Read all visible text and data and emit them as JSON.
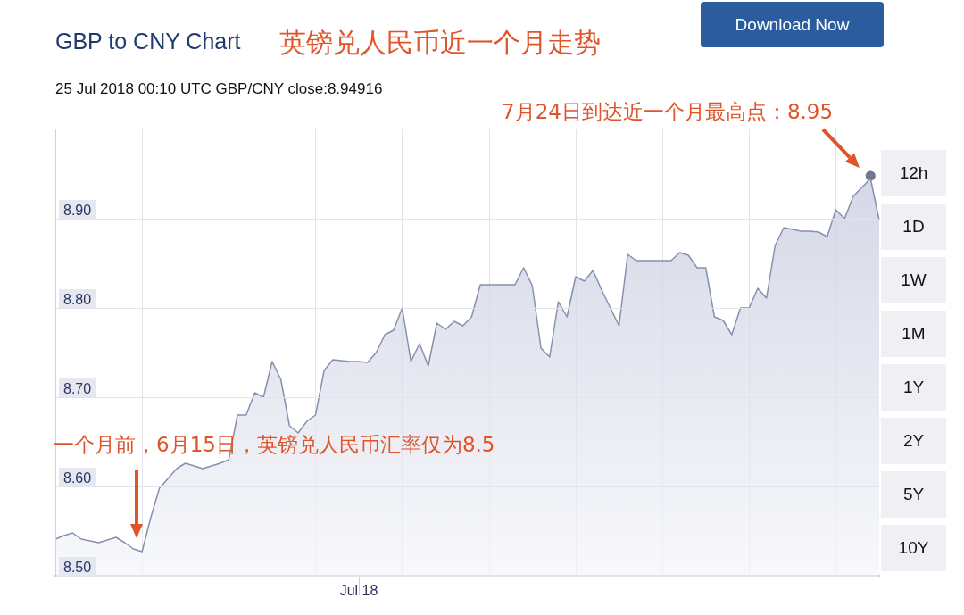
{
  "chart_data": {
    "type": "area",
    "title": "GBP to CNY Chart",
    "subtitle": "25 Jul 2018 00:10 UTC   GBP/CNY close:8.94916",
    "annotations": [
      "英镑兑人民币近一个月走势",
      "7月24日到达近一个月最高点：8.95",
      "一个月前，6月15日，英镑兑人民币汇率仅为8.5",
      "Download Now",
      "12h",
      "1D",
      "1W",
      "1M",
      "1Y",
      "2Y",
      "5Y",
      "10Y"
    ],
    "categories": [
      null,
      null,
      null,
      null,
      null,
      null,
      null,
      null,
      null,
      null,
      null,
      null,
      null,
      null,
      null,
      null,
      null,
      null,
      null,
      null,
      null,
      null,
      null,
      null,
      null,
      null,
      null,
      null,
      null,
      null,
      null,
      null,
      null,
      null,
      null,
      "Jul 18",
      null,
      null,
      null,
      null,
      null,
      null,
      null,
      null,
      null,
      null,
      null,
      null,
      null,
      null,
      null,
      null,
      null,
      null,
      null,
      null,
      null,
      null,
      null,
      null,
      null,
      null,
      null,
      null,
      null,
      null,
      null,
      null,
      null,
      null,
      null,
      null,
      null,
      null,
      null,
      null,
      null,
      null,
      null,
      null,
      null,
      null,
      null,
      null,
      null,
      null,
      null,
      null,
      null,
      null,
      null,
      null,
      null,
      null,
      null,
      null
    ],
    "series": [
      {
        "color": "#8890b0",
        "values": [
          8.541,
          8.545,
          8.548,
          8.541,
          8.539,
          8.537,
          8.54,
          8.543,
          8.537,
          8.53,
          8.527,
          8.565,
          8.598,
          8.609,
          8.62,
          8.626,
          8.623,
          8.62,
          8.623,
          8.626,
          8.63,
          8.68,
          8.68,
          8.705,
          8.7,
          8.74,
          8.72,
          8.668,
          8.66,
          8.673,
          8.68,
          8.73,
          8.742,
          8.741,
          8.74,
          8.74,
          8.739,
          8.75,
          8.77,
          8.775,
          8.8,
          8.74,
          8.76,
          8.735,
          8.783,
          8.776,
          8.785,
          8.78,
          8.79,
          8.826,
          8.826,
          8.826,
          8.826,
          8.826,
          8.845,
          8.825,
          8.755,
          8.745,
          8.807,
          8.79,
          8.835,
          8.83,
          8.842,
          8.82,
          8.8,
          8.78,
          8.86,
          8.853,
          8.853,
          8.853,
          8.853,
          8.853,
          8.862,
          8.859,
          8.845,
          8.845,
          8.79,
          8.786,
          8.77,
          8.8,
          8.8,
          8.822,
          8.811,
          8.87,
          8.89,
          8.888,
          8.886,
          8.886,
          8.885,
          8.88,
          8.91,
          8.9,
          8.925,
          8.935,
          8.945,
          8.898
        ]
      },
      {
        "type": "scatter",
        "color": "#4a5578",
        "values": [
          null,
          null,
          null,
          null,
          null,
          null,
          null,
          null,
          null,
          null,
          null,
          null,
          null,
          null,
          null,
          null,
          null,
          null,
          null,
          null,
          null,
          null,
          null,
          null,
          null,
          null,
          null,
          null,
          null,
          null,
          null,
          null,
          null,
          null,
          null,
          null,
          null,
          null,
          null,
          null,
          null,
          null,
          null,
          null,
          null,
          null,
          null,
          null,
          null,
          null,
          null,
          null,
          null,
          null,
          null,
          null,
          null,
          null,
          null,
          null,
          null,
          null,
          null,
          null,
          null,
          null,
          null,
          null,
          null,
          null,
          null,
          null,
          null,
          null,
          null,
          null,
          null,
          null,
          null,
          null,
          null,
          null,
          null,
          null,
          null,
          null,
          null,
          null,
          null,
          null,
          null,
          null,
          null,
          null,
          8.948,
          null
        ]
      }
    ],
    "ylim": [
      8.5,
      9.0
    ],
    "yticks": [
      {
        "value": 8.5,
        "label": "8.50"
      },
      {
        "value": 8.6,
        "label": "8.60"
      },
      {
        "value": 8.7,
        "label": "8.70"
      },
      {
        "value": 8.8,
        "label": "8.80"
      },
      {
        "value": 8.9,
        "label": "8.90"
      }
    ],
    "grid": true
  }
}
